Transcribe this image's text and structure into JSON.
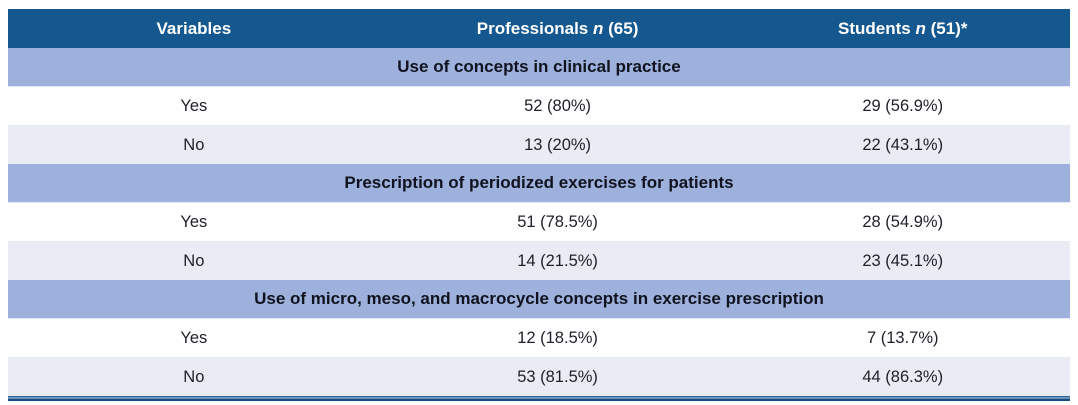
{
  "header": {
    "variables": "Variables",
    "professionals": {
      "name": "Professionals",
      "n": "n",
      "count": "(65)"
    },
    "students": {
      "name": "Students",
      "n": "n",
      "count": "(51)*"
    }
  },
  "sections": [
    {
      "title": "Use of concepts in clinical practice",
      "rows": [
        {
          "variable": "Yes",
          "professionals": "52 (80%)",
          "students": "29 (56.9%)"
        },
        {
          "variable": "No",
          "professionals": "13 (20%)",
          "students": "22 (43.1%)"
        }
      ]
    },
    {
      "title": "Prescription of periodized exercises for patients",
      "rows": [
        {
          "variable": "Yes",
          "professionals": "51 (78.5%)",
          "students": "28 (54.9%)"
        },
        {
          "variable": "No",
          "professionals": "14 (21.5%)",
          "students": "23 (45.1%)"
        }
      ]
    },
    {
      "title": "Use of micro, meso, and macrocycle concepts in exercise prescription",
      "rows": [
        {
          "variable": "Yes",
          "professionals": "12 (18.5%)",
          "students": "7 (13.7%)"
        },
        {
          "variable": "No",
          "professionals": "53 (81.5%)",
          "students": "44 (86.3%)"
        }
      ]
    }
  ],
  "colors": {
    "header_bg": "#15578F",
    "section_bg": "#9DB1DC",
    "row_alt_bg": "#E9EBF5",
    "header_text": "#FFFFFF",
    "body_text": "#21212B",
    "bottom_border": "#134F84"
  },
  "chart_data": {
    "type": "table",
    "columns": [
      "Variables",
      "Professionals n (65)",
      "Students n (51)*"
    ],
    "rows": [
      [
        "Use of concepts in clinical practice",
        "",
        ""
      ],
      [
        "Yes",
        "52 (80%)",
        "29 (56.9%)"
      ],
      [
        "No",
        "13 (20%)",
        "22 (43.1%)"
      ],
      [
        "Prescription of periodized exercises for patients",
        "",
        ""
      ],
      [
        "Yes",
        "51 (78.5%)",
        "28 (54.9%)"
      ],
      [
        "No",
        "14 (21.5%)",
        "23 (45.1%)"
      ],
      [
        "Use of micro, meso, and macrocycle concepts in exercise prescription",
        "",
        ""
      ],
      [
        "Yes",
        "12 (18.5%)",
        "7 (13.7%)"
      ],
      [
        "No",
        "53 (81.5%)",
        "44 (86.3%)"
      ]
    ]
  }
}
